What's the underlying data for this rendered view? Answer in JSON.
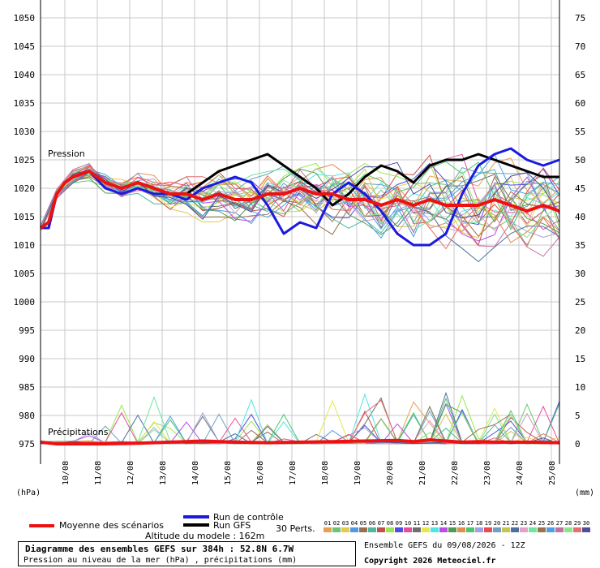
{
  "chart_data": {
    "type": "line",
    "left_axis": {
      "unit": "(hPa)",
      "ticks": [
        1050,
        1045,
        1040,
        1035,
        1030,
        1025,
        1020,
        1015,
        1010,
        1005,
        1000,
        995,
        990,
        985,
        980,
        975
      ]
    },
    "right_axis": {
      "unit": "(mm)",
      "ticks": [
        75,
        70,
        65,
        60,
        55,
        50,
        45,
        40,
        35,
        30,
        25,
        20,
        15,
        10,
        5,
        0
      ]
    },
    "x_dates": [
      "10/08",
      "11/08",
      "12/08",
      "13/08",
      "14/08",
      "15/08",
      "16/08",
      "17/08",
      "18/08",
      "19/08",
      "20/08",
      "21/08",
      "22/08",
      "23/08",
      "24/08",
      "25/08"
    ],
    "x_range_hours": [
      0,
      384
    ],
    "grid": true,
    "labels": {
      "pressure": "Pression",
      "precip": "Précipitations"
    },
    "mean_pressure": {
      "x": [
        0,
        6,
        12,
        18,
        24,
        36,
        48,
        60,
        72,
        84,
        96,
        108,
        120,
        132,
        144,
        156,
        168,
        180,
        192,
        204,
        216,
        228,
        240,
        252,
        264,
        276,
        288,
        300,
        312,
        324,
        336,
        348,
        360,
        372,
        384
      ],
      "y": [
        1013,
        1014,
        1019,
        1021,
        1022,
        1023,
        1021,
        1020,
        1021,
        1020,
        1019,
        1019,
        1018,
        1019,
        1018,
        1018,
        1019,
        1019,
        1020,
        1019,
        1019,
        1018,
        1018,
        1017,
        1018,
        1017,
        1018,
        1017,
        1017,
        1017,
        1018,
        1017,
        1016,
        1017,
        1016
      ]
    },
    "control_pressure": {
      "x": [
        0,
        6,
        12,
        18,
        24,
        36,
        48,
        60,
        72,
        84,
        96,
        108,
        120,
        132,
        144,
        156,
        168,
        180,
        192,
        204,
        216,
        228,
        240,
        252,
        264,
        276,
        288,
        300,
        312,
        324,
        336,
        348,
        360,
        372,
        384
      ],
      "y": [
        1013,
        1013,
        1019,
        1021,
        1022,
        1023,
        1020,
        1019,
        1020,
        1019,
        1019,
        1018,
        1020,
        1021,
        1022,
        1021,
        1017,
        1012,
        1014,
        1013,
        1019,
        1021,
        1019,
        1016,
        1012,
        1010,
        1010,
        1012,
        1019,
        1024,
        1026,
        1027,
        1025,
        1024,
        1025
      ]
    },
    "gfs_pressure": {
      "x": [
        0,
        6,
        12,
        18,
        24,
        36,
        48,
        60,
        72,
        84,
        96,
        108,
        120,
        132,
        144,
        156,
        168,
        180,
        192,
        204,
        216,
        228,
        240,
        252,
        264,
        276,
        288,
        300,
        312,
        324,
        336,
        348,
        360,
        372,
        384
      ],
      "y": [
        1013,
        1013,
        1019,
        1021,
        1022,
        1023,
        1021,
        1020,
        1021,
        1020,
        1019,
        1019,
        1021,
        1023,
        1024,
        1025,
        1026,
        1024,
        1022,
        1020,
        1017,
        1019,
        1022,
        1024,
        1023,
        1021,
        1024,
        1025,
        1025,
        1026,
        1025,
        1024,
        1023,
        1022,
        1022
      ]
    },
    "mean_precip_mm": {
      "x": [
        0,
        12,
        24,
        48,
        72,
        96,
        108,
        120,
        144,
        168,
        192,
        216,
        240,
        264,
        276,
        288,
        300,
        312,
        324,
        336,
        360,
        384
      ],
      "y": [
        0.3,
        0,
        0,
        0,
        0.1,
        0.3,
        0.4,
        0.5,
        0.3,
        0.2,
        0.3,
        0.4,
        0.5,
        0.6,
        0.4,
        0.7,
        0.5,
        0.3,
        0.4,
        0.3,
        0.3,
        0.2
      ]
    },
    "members_count": 30
  },
  "legend": {
    "mean": "Moyenne des scénarios",
    "control": "Run de contrôle",
    "gfs": "Run GFS",
    "altitude": "Altitude du modele : 162m",
    "perts": "30 Perts.",
    "pert_ids": [
      "01",
      "02",
      "03",
      "04",
      "05",
      "06",
      "07",
      "08",
      "09",
      "10",
      "11",
      "12",
      "13",
      "14",
      "15",
      "16",
      "17",
      "18",
      "19",
      "20",
      "21",
      "22",
      "23",
      "24",
      "25",
      "26",
      "27",
      "28",
      "29",
      "30"
    ],
    "colors": {
      "mean": "#ee1111",
      "control": "#1a1ae0",
      "gfs": "#000000"
    },
    "pert_colors": [
      "#e6a04e",
      "#6fc46f",
      "#e6c84e",
      "#4e9ae6",
      "#9a6f4e",
      "#4eb8a0",
      "#c44e4e",
      "#9ae64e",
      "#4e4ee6",
      "#e64e9a",
      "#6f6f6f",
      "#e6e64e",
      "#4ee6e6",
      "#b84ee6",
      "#4e9a4e",
      "#e68a4e",
      "#4ec46f",
      "#a0a0e6",
      "#e64e4e",
      "#6fa0c4",
      "#c4c44e",
      "#4e6fa0",
      "#e6a0c4",
      "#6fe6a0",
      "#a06f4e",
      "#4ea0e6",
      "#c46fa0",
      "#8ae68a",
      "#e66f6f",
      "#4e4e9a"
    ]
  },
  "info": {
    "title": "Diagramme des ensembles GEFS sur 384h : 52.8N 6.7W",
    "subtitle": "Pression au niveau de la mer (hPa) , précipitations (mm)",
    "run": "Ensemble GEFS du 09/08/2026 - 12Z",
    "copyright": "Copyright 2026 Meteociel.fr"
  }
}
